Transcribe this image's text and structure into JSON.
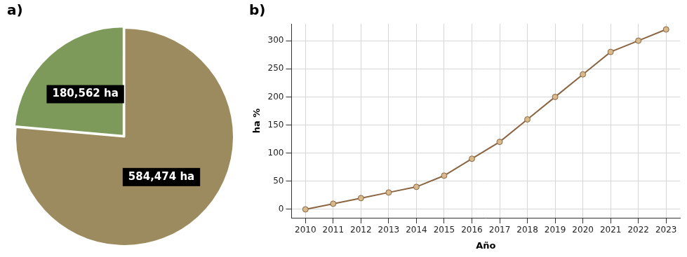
{
  "chart_data": [
    {
      "type": "pie",
      "title": "a)",
      "values": [
        584474,
        180562
      ],
      "value_labels": [
        "584,474 ha",
        "180,562 ha"
      ],
      "colors": [
        "#9c8b5e",
        "#7d9a5a"
      ],
      "data_labels": true
    },
    {
      "type": "line",
      "title": "b)",
      "x_label": "Año",
      "y_label": "ha %",
      "categories": [
        "2010",
        "2011",
        "2012",
        "2013",
        "2014",
        "2015",
        "2016",
        "2017",
        "2018",
        "2019",
        "2020",
        "2021",
        "2022",
        "2023"
      ],
      "values": [
        0,
        10,
        20,
        30,
        40,
        60,
        90,
        120,
        160,
        200,
        240,
        280,
        300,
        320
      ],
      "color": "#8b6542",
      "marker": "o",
      "line_style": "solid",
      "ylim": [
        -15,
        330
      ],
      "yticks": [
        0,
        50,
        100,
        150,
        200,
        250,
        300
      ],
      "grid": true
    }
  ]
}
